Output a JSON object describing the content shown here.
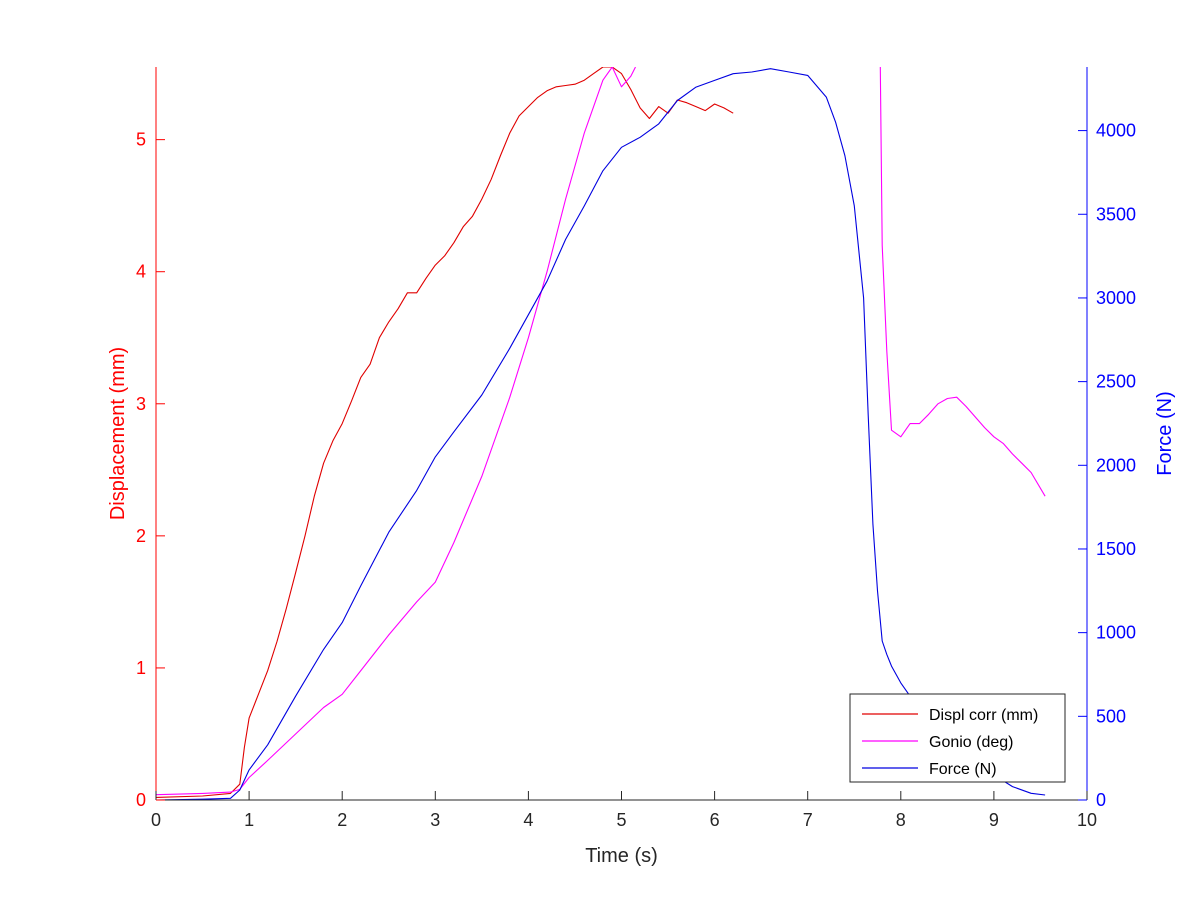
{
  "chart_data": {
    "type": "line",
    "xlabel": "Time (s)",
    "ylabel_left": "Displacement (mm)",
    "ylabel_right": "Force (N)",
    "xlim": [
      0,
      10
    ],
    "ylim_left": [
      0,
      5.55
    ],
    "ylim_right": [
      0,
      4380
    ],
    "x_ticks": [
      "0",
      "1",
      "2",
      "3",
      "4",
      "5",
      "6",
      "7",
      "8",
      "9",
      "10"
    ],
    "y_left_ticks": [
      "0",
      "1",
      "2",
      "3",
      "4",
      "5"
    ],
    "y_right_ticks": [
      "0",
      "500",
      "1000",
      "1500",
      "2000",
      "2500",
      "3000",
      "3500",
      "4000"
    ],
    "grid": false,
    "legend_position": "bottom-right",
    "colors": {
      "left_axis": "#ff0000",
      "right_axis": "#0000ff",
      "x_axis": "#262626"
    },
    "series": [
      {
        "name": "Displ corr (mm)",
        "axis": "left",
        "color": "#e00000",
        "x": [
          0,
          0.5,
          0.8,
          0.9,
          0.95,
          1.0,
          1.1,
          1.2,
          1.3,
          1.4,
          1.5,
          1.6,
          1.7,
          1.8,
          1.9,
          2.0,
          2.1,
          2.2,
          2.3,
          2.4,
          2.5,
          2.6,
          2.7,
          2.8,
          2.9,
          3.0,
          3.1,
          3.2,
          3.3,
          3.4,
          3.5,
          3.6,
          3.7,
          3.8,
          3.9,
          4.0,
          4.1,
          4.2,
          4.3,
          4.4,
          4.5,
          4.6,
          4.7,
          4.8,
          4.9,
          5.0,
          5.1,
          5.2,
          5.3,
          5.4,
          5.5,
          5.6,
          5.7,
          5.8,
          5.9,
          6.0,
          6.1,
          6.2
        ],
        "y": [
          0.02,
          0.03,
          0.05,
          0.12,
          0.4,
          0.62,
          0.8,
          0.98,
          1.2,
          1.45,
          1.72,
          2.0,
          2.3,
          2.55,
          2.72,
          2.85,
          3.02,
          3.2,
          3.3,
          3.5,
          3.62,
          3.72,
          3.84,
          3.84,
          3.95,
          4.05,
          4.12,
          4.22,
          4.34,
          4.42,
          4.55,
          4.7,
          4.88,
          5.05,
          5.18,
          5.25,
          5.32,
          5.37,
          5.4,
          5.41,
          5.42,
          5.45,
          5.5,
          5.55,
          5.55,
          5.5,
          5.38,
          5.24,
          5.16,
          5.25,
          5.2,
          5.3,
          5.28,
          5.25,
          5.22,
          5.27,
          5.24,
          5.2
        ]
      },
      {
        "name": "Gonio (deg)",
        "axis": "left",
        "color": "#ff00ff",
        "x": [
          0,
          0.5,
          0.8,
          0.9,
          1.0,
          1.2,
          1.5,
          1.8,
          2.0,
          2.2,
          2.5,
          2.8,
          3.0,
          3.2,
          3.5,
          3.8,
          4.0,
          4.2,
          4.4,
          4.6,
          4.8,
          4.9,
          5.0,
          5.1,
          5.15,
          7.78,
          7.8,
          7.85,
          7.9,
          8.0,
          8.1,
          8.2,
          8.3,
          8.4,
          8.5,
          8.6,
          8.7,
          8.8,
          8.9,
          9.0,
          9.1,
          9.2,
          9.3,
          9.4,
          9.55
        ],
        "y": [
          0.04,
          0.05,
          0.06,
          0.08,
          0.17,
          0.3,
          0.5,
          0.7,
          0.8,
          0.98,
          1.25,
          1.5,
          1.65,
          1.95,
          2.45,
          3.05,
          3.5,
          4.0,
          4.55,
          5.05,
          5.45,
          5.55,
          5.4,
          5.48,
          5.55,
          5.55,
          4.2,
          3.4,
          2.8,
          2.75,
          2.85,
          2.85,
          2.92,
          3.0,
          3.04,
          3.05,
          2.98,
          2.9,
          2.82,
          2.75,
          2.7,
          2.62,
          2.55,
          2.48,
          2.3
        ]
      },
      {
        "name": "Force (N)",
        "axis": "right",
        "color": "#0000e0",
        "x": [
          0,
          0.5,
          0.8,
          0.9,
          1.0,
          1.2,
          1.5,
          1.8,
          2.0,
          2.2,
          2.5,
          2.8,
          3.0,
          3.2,
          3.5,
          3.8,
          4.0,
          4.2,
          4.4,
          4.6,
          4.8,
          5.0,
          5.2,
          5.4,
          5.6,
          5.8,
          6.0,
          6.2,
          6.4,
          6.6,
          6.8,
          7.0,
          7.2,
          7.3,
          7.4,
          7.5,
          7.6,
          7.65,
          7.7,
          7.75,
          7.8,
          7.85,
          7.9,
          8.0,
          8.1,
          8.2,
          8.4,
          8.6,
          8.8,
          9.0,
          9.2,
          9.4,
          9.55
        ],
        "y": [
          0,
          5,
          10,
          60,
          180,
          330,
          620,
          900,
          1060,
          1280,
          1600,
          1850,
          2050,
          2200,
          2420,
          2700,
          2900,
          3100,
          3350,
          3550,
          3760,
          3900,
          3960,
          4040,
          4180,
          4260,
          4300,
          4340,
          4350,
          4370,
          4350,
          4330,
          4200,
          4050,
          3850,
          3550,
          3000,
          2300,
          1650,
          1250,
          950,
          870,
          800,
          700,
          620,
          500,
          420,
          320,
          230,
          150,
          80,
          40,
          30
        ]
      }
    ]
  }
}
